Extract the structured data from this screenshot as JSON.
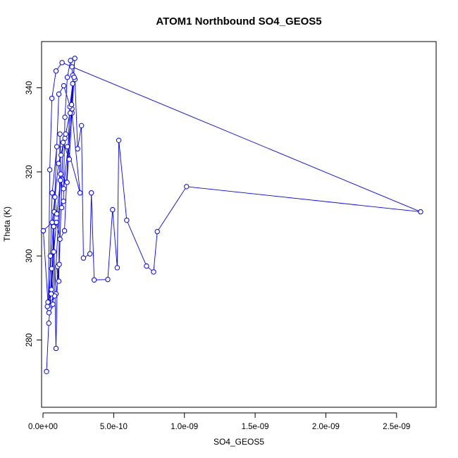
{
  "chart_data": {
    "type": "line",
    "title": "ATOM1 Northbound SO4_GEOS5",
    "xlabel": "SO4_GEOS5",
    "ylabel": "Theta (K)",
    "xlim": [
      -1e-11,
      2.78e-09
    ],
    "ylim": [
      264,
      351
    ],
    "x_ticks": [
      {
        "value": 0,
        "label": "0.0e+00"
      },
      {
        "value": 5e-10,
        "label": "5.0e-10"
      },
      {
        "value": 1e-09,
        "label": "1.0e-09"
      },
      {
        "value": 1.5e-09,
        "label": "1.5e-09"
      },
      {
        "value": 2e-09,
        "label": "2.0e-09"
      },
      {
        "value": 2.5e-09,
        "label": "2.5e-09"
      }
    ],
    "y_ticks": [
      {
        "value": 280,
        "label": "280"
      },
      {
        "value": 300,
        "label": "300"
      },
      {
        "value": 320,
        "label": "320"
      },
      {
        "value": 340,
        "label": "340"
      }
    ],
    "grid": false,
    "marker": "open-circle",
    "series": [
      {
        "color": "#0000ff",
        "x": [
          2.5e-11,
          4.1e-11,
          5.1e-11,
          6.1e-11,
          7e-11,
          7.6e-11,
          9.2e-11,
          1.03e-10,
          1.12e-10,
          1.2e-10,
          1.32e-10,
          1.45e-10,
          1.55e-10,
          1.72e-10,
          1.95e-10,
          2.11e-10,
          2.26e-10,
          2.45e-10,
          2.72e-10,
          2.86e-10,
          3.32e-10,
          3.42e-10,
          3.62e-10,
          4.58e-10,
          4.92e-10,
          5.25e-10,
          5.36e-10,
          5.92e-10,
          7.32e-10,
          7.82e-10,
          8.08e-10,
          1.015e-09,
          2.67e-09,
          2.05e-10,
          1.35e-10,
          9.2e-11,
          6.3e-11,
          4.8e-11,
          3.8e-11,
          7.9e-11,
          1.12e-10,
          1.47e-10,
          2.05e-10,
          2.62e-10,
          1.72e-10,
          9.8e-11,
          6.5e-11,
          5.2e-11,
          4.4e-11,
          9.2e-11,
          1.15e-10,
          1.42e-10,
          1.86e-10,
          2.2e-10,
          2.05e-10,
          1.46e-10,
          1.23e-10,
          9.8e-11,
          8.4e-11,
          6e-11,
          4.2e-11,
          3.1e-11,
          8.2e-11,
          1.25e-10,
          1.7e-10,
          2.1e-10,
          1.9e-10,
          1.52e-10,
          1.2e-10,
          9.5e-11,
          7.6e-11,
          5.8e-11,
          3.5e-11,
          2e-12,
          6.5e-11,
          1.1e-10,
          1.55e-10,
          2.02e-10,
          2.25e-10,
          1.92e-10,
          1.6e-10,
          1.28e-10
        ],
        "y": [
          272.5,
          284.0,
          288.0,
          297.0,
          288.5,
          307.0,
          278.0,
          297.5,
          294.0,
          329.0,
          311.5,
          313.0,
          333.0,
          342.5,
          346.5,
          343.0,
          342.0,
          325.5,
          331.0,
          299.5,
          300.5,
          315.0,
          294.3,
          294.4,
          311.0,
          297.2,
          327.5,
          308.5,
          297.6,
          296.2,
          305.8,
          316.5,
          310.5,
          345.0,
          346.0,
          344.0,
          337.5,
          320.5,
          289.0,
          310.5,
          338.5,
          340.5,
          334.0,
          315.0,
          326.0,
          326.0,
          315.0,
          300.0,
          287.5,
          291.0,
          298.0,
          327.0,
          323.0,
          342.5,
          335.0,
          316.0,
          318.0,
          310.0,
          314.0,
          292.0,
          286.5,
          288.0,
          290.5,
          319.5,
          317.5,
          341.0,
          335.5,
          306.0,
          304.0,
          308.0,
          301.0,
          291.0,
          289.0,
          306.0,
          308.0,
          322.0,
          328.0,
          336.0,
          347.0,
          334.0,
          329.0,
          324.0
        ]
      }
    ]
  }
}
